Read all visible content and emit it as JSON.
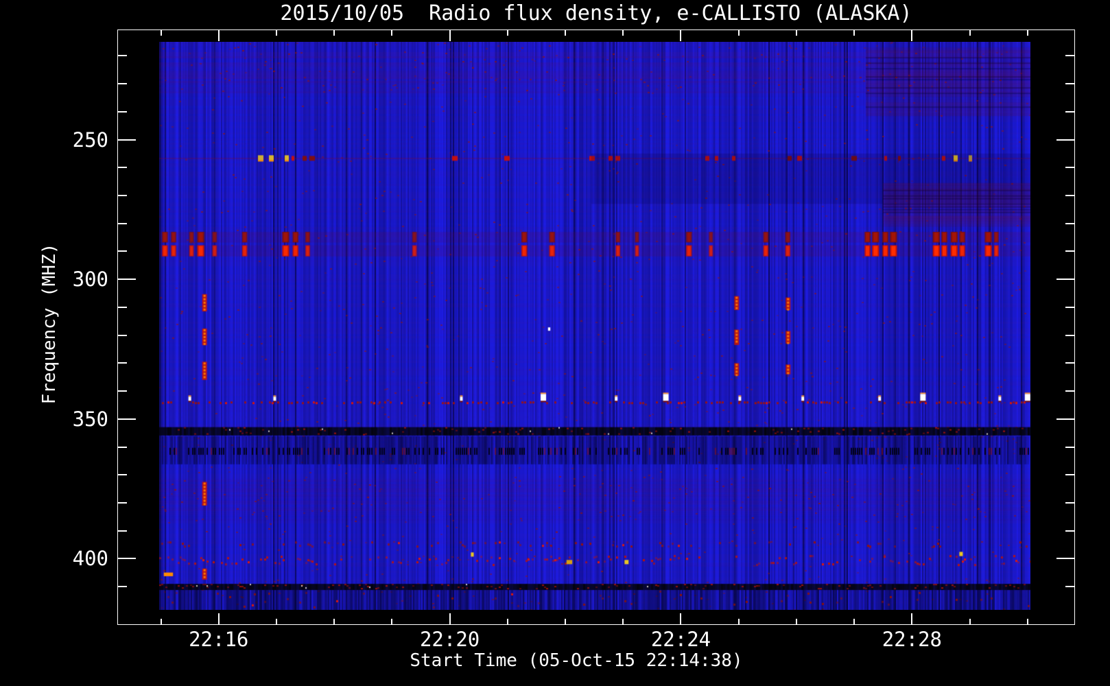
{
  "chart_data": {
    "type": "heatmap",
    "title": "2015/10/05  Radio flux density, e-CALLISTO (ALASKA)",
    "xlabel": "Start Time (05-Oct-15 22:14:38)",
    "ylabel": "Frequency (MHZ)",
    "x_axis": {
      "unit": "minutes after 22:00 UT",
      "start_min": 14.97,
      "end_min": 30.05,
      "major_ticks": [
        {
          "min": 16,
          "label": "22:16"
        },
        {
          "min": 20,
          "label": "22:20"
        },
        {
          "min": 24,
          "label": "22:24"
        },
        {
          "min": 28,
          "label": "22:28"
        }
      ],
      "minor_tick_every_min": 1
    },
    "y_axis": {
      "unit": "MHz",
      "top_mhz": 215.0,
      "bottom_mhz": 418.3,
      "major_ticks": [
        250,
        300,
        350,
        400
      ],
      "minor_tick_every_mhz": 10
    },
    "palette": {
      "page_bg": "#000000",
      "text": "#ffffff",
      "frame": "#ffffff",
      "background": "#1d1de4",
      "striation": "#03033c",
      "speckle_red": "#8f1205",
      "bright_red": "#e01300",
      "orange": "#ff7a00",
      "yellow": "#e9c623",
      "white": "#ffffff",
      "maroon": "#730823"
    },
    "bands": [
      {
        "name": "top-noise",
        "style": "purple_noise",
        "f0": 215.0,
        "f1": 233.0,
        "density": 0.5
      },
      {
        "name": "rfi-line-257",
        "style": "dash_line",
        "f0": 255.6,
        "f1": 257.8,
        "density": 0.14
      },
      {
        "name": "smooth-region-right",
        "style": "tint",
        "f0": 255.0,
        "f1": 273.0,
        "t0": 22.45,
        "t1": 30.05,
        "color": "rgba(8,0,50,0.16)"
      },
      {
        "name": "maroon-rows-top-right",
        "style": "maroon_rows",
        "f0": 217.0,
        "f1": 241.0,
        "t0": 27.2,
        "t1": 30.05,
        "alpha": 0.22
      },
      {
        "name": "maroon-rows-mid-right",
        "style": "maroon_rows",
        "f0": 265.5,
        "f1": 281.0,
        "t0": 27.5,
        "t1": 30.05,
        "alpha": 0.32
      },
      {
        "name": "red-band-dark-285",
        "style": "blob_row",
        "f0": 283.0,
        "f1": 286.8,
        "color": "#7c1010",
        "core": "#a51505"
      },
      {
        "name": "red-band-bright-290",
        "style": "blob_row",
        "f0": 287.8,
        "f1": 291.8,
        "color": "#c81200",
        "core": "#ff2d00"
      },
      {
        "name": "red-dot-line-344",
        "style": "dot_line",
        "f0": 343.7,
        "f1": 344.7,
        "density": 0.4,
        "color": "#a81200"
      },
      {
        "name": "dark-band-354",
        "style": "dark_dense",
        "f0": 352.9,
        "f1": 355.9
      },
      {
        "name": "striated-band-358",
        "style": "striation_strong",
        "f0": 356.2,
        "f1": 366.2,
        "alpha": 0.4
      },
      {
        "name": "black-dash-row-361",
        "style": "black_dash_row",
        "f0": 360.3,
        "f1": 362.8,
        "density": 0.38
      },
      {
        "name": "purple-band-377",
        "style": "purple_noise",
        "f0": 371.8,
        "f1": 386.3,
        "density": 0.4
      },
      {
        "name": "red-row-395",
        "style": "speckle_row",
        "f0": 393.8,
        "f1": 396.3,
        "density": 0.16,
        "color": "#9c1205"
      },
      {
        "name": "red-row-401",
        "style": "speckle_row",
        "f0": 398.7,
        "f1": 402.8,
        "density": 0.34,
        "color": "#bf1305"
      },
      {
        "name": "dark-row-410",
        "style": "dark_dense",
        "f0": 409.0,
        "f1": 411.2
      },
      {
        "name": "bottom-striations",
        "style": "striation_strong",
        "f0": 411.2,
        "f1": 418.3,
        "alpha": 0.45
      },
      {
        "name": "bottom-speckles",
        "style": "speckle_row",
        "f0": 411.4,
        "f1": 418.0,
        "density": 0.1,
        "color": "#8f1205"
      }
    ],
    "rfi_clusters_min": [
      [
        15.05,
        15.32,
        4
      ],
      [
        15.75,
        15.95,
        3
      ],
      [
        16.6,
        17.25,
        4
      ],
      [
        17.45,
        17.65,
        3
      ],
      [
        19.28,
        19.45,
        3
      ],
      [
        19.9,
        20.1,
        3
      ],
      [
        20.9,
        21.1,
        2.5
      ],
      [
        22.4,
        23.0,
        3
      ],
      [
        23.9,
        24.05,
        3
      ],
      [
        24.35,
        24.6,
        3
      ],
      [
        25.2,
        25.35,
        2.5
      ],
      [
        25.65,
        26.05,
        2.5
      ],
      [
        26.45,
        26.65,
        2.5
      ],
      [
        28.4,
        28.55,
        4
      ],
      [
        28.8,
        29.0,
        4
      ],
      [
        29.05,
        29.25,
        3
      ]
    ],
    "red_blob_times_min": [
      [
        15.07,
        0.1,
        0.8
      ],
      [
        15.22,
        0.09,
        0.7
      ],
      [
        15.53,
        0.08,
        0.6
      ],
      [
        15.69,
        0.12,
        0.9
      ],
      [
        15.93,
        0.08,
        0.5
      ],
      [
        16.45,
        0.09,
        0.7
      ],
      [
        17.16,
        0.12,
        0.9
      ],
      [
        17.33,
        0.1,
        0.8
      ],
      [
        17.54,
        0.08,
        0.6
      ],
      [
        19.39,
        0.08,
        0.5
      ],
      [
        21.29,
        0.1,
        0.8
      ],
      [
        21.77,
        0.1,
        0.7
      ],
      [
        22.91,
        0.08,
        0.6
      ],
      [
        23.24,
        0.07,
        0.5
      ],
      [
        24.14,
        0.1,
        0.7
      ],
      [
        24.52,
        0.07,
        0.5
      ],
      [
        25.47,
        0.09,
        0.7
      ],
      [
        25.85,
        0.09,
        0.6
      ],
      [
        27.23,
        0.1,
        0.9
      ],
      [
        27.37,
        0.12,
        1.0
      ],
      [
        27.54,
        0.1,
        0.9
      ],
      [
        27.68,
        0.12,
        1.0
      ],
      [
        28.42,
        0.12,
        1.0
      ],
      [
        28.56,
        0.1,
        0.9
      ],
      [
        28.73,
        0.12,
        1.0
      ],
      [
        28.87,
        0.1,
        0.8
      ],
      [
        29.32,
        0.12,
        0.9
      ],
      [
        29.46,
        0.08,
        0.7
      ]
    ],
    "white_blobs": [
      [
        15.5,
        0
      ],
      [
        16.97,
        0
      ],
      [
        20.2,
        0
      ],
      [
        21.62,
        1
      ],
      [
        22.88,
        0
      ],
      [
        23.74,
        1
      ],
      [
        25.02,
        0
      ],
      [
        26.11,
        0
      ],
      [
        27.44,
        0
      ],
      [
        28.19,
        1
      ],
      [
        29.52,
        0
      ],
      [
        30.0,
        1
      ]
    ],
    "bursts": [
      {
        "t": 15.75,
        "segments": [
          [
            305.3,
            311.5
          ],
          [
            317.6,
            323.6
          ],
          [
            329.5,
            336.0
          ],
          [
            372.5,
            381.0
          ],
          [
            403.5,
            407.5
          ]
        ]
      },
      {
        "t": 24.96,
        "segments": [
          [
            306.0,
            311.0
          ],
          [
            318.0,
            323.5
          ],
          [
            330.0,
            334.5
          ]
        ]
      },
      {
        "t": 25.85,
        "segments": [
          [
            306.5,
            311.0
          ],
          [
            318.5,
            323.0
          ],
          [
            330.5,
            334.0
          ]
        ]
      }
    ],
    "spot_events": [
      {
        "name": "orange-dash",
        "t": 15.13,
        "f": 405.6,
        "w": 0.16,
        "h": 1.3,
        "color": "#ff8c00"
      },
      {
        "name": "yellow-dot",
        "t": 20.39,
        "f": 398.5,
        "w": 0.05,
        "h": 1.5,
        "color": "#e9c623"
      },
      {
        "name": "yellow-dot",
        "t": 22.07,
        "f": 401.2,
        "w": 0.1,
        "h": 1.5,
        "color": "#d8a010"
      },
      {
        "name": "yellow-dot",
        "t": 23.06,
        "f": 401.2,
        "w": 0.07,
        "h": 1.5,
        "color": "#e9c623"
      },
      {
        "name": "yellow-dot",
        "t": 28.85,
        "f": 398.3,
        "w": 0.06,
        "h": 1.5,
        "color": "#e9c623"
      },
      {
        "name": "white-dot",
        "t": 21.72,
        "f": 317.8,
        "w": 0.04,
        "h": 1.2,
        "color": "#ffffff"
      }
    ]
  }
}
